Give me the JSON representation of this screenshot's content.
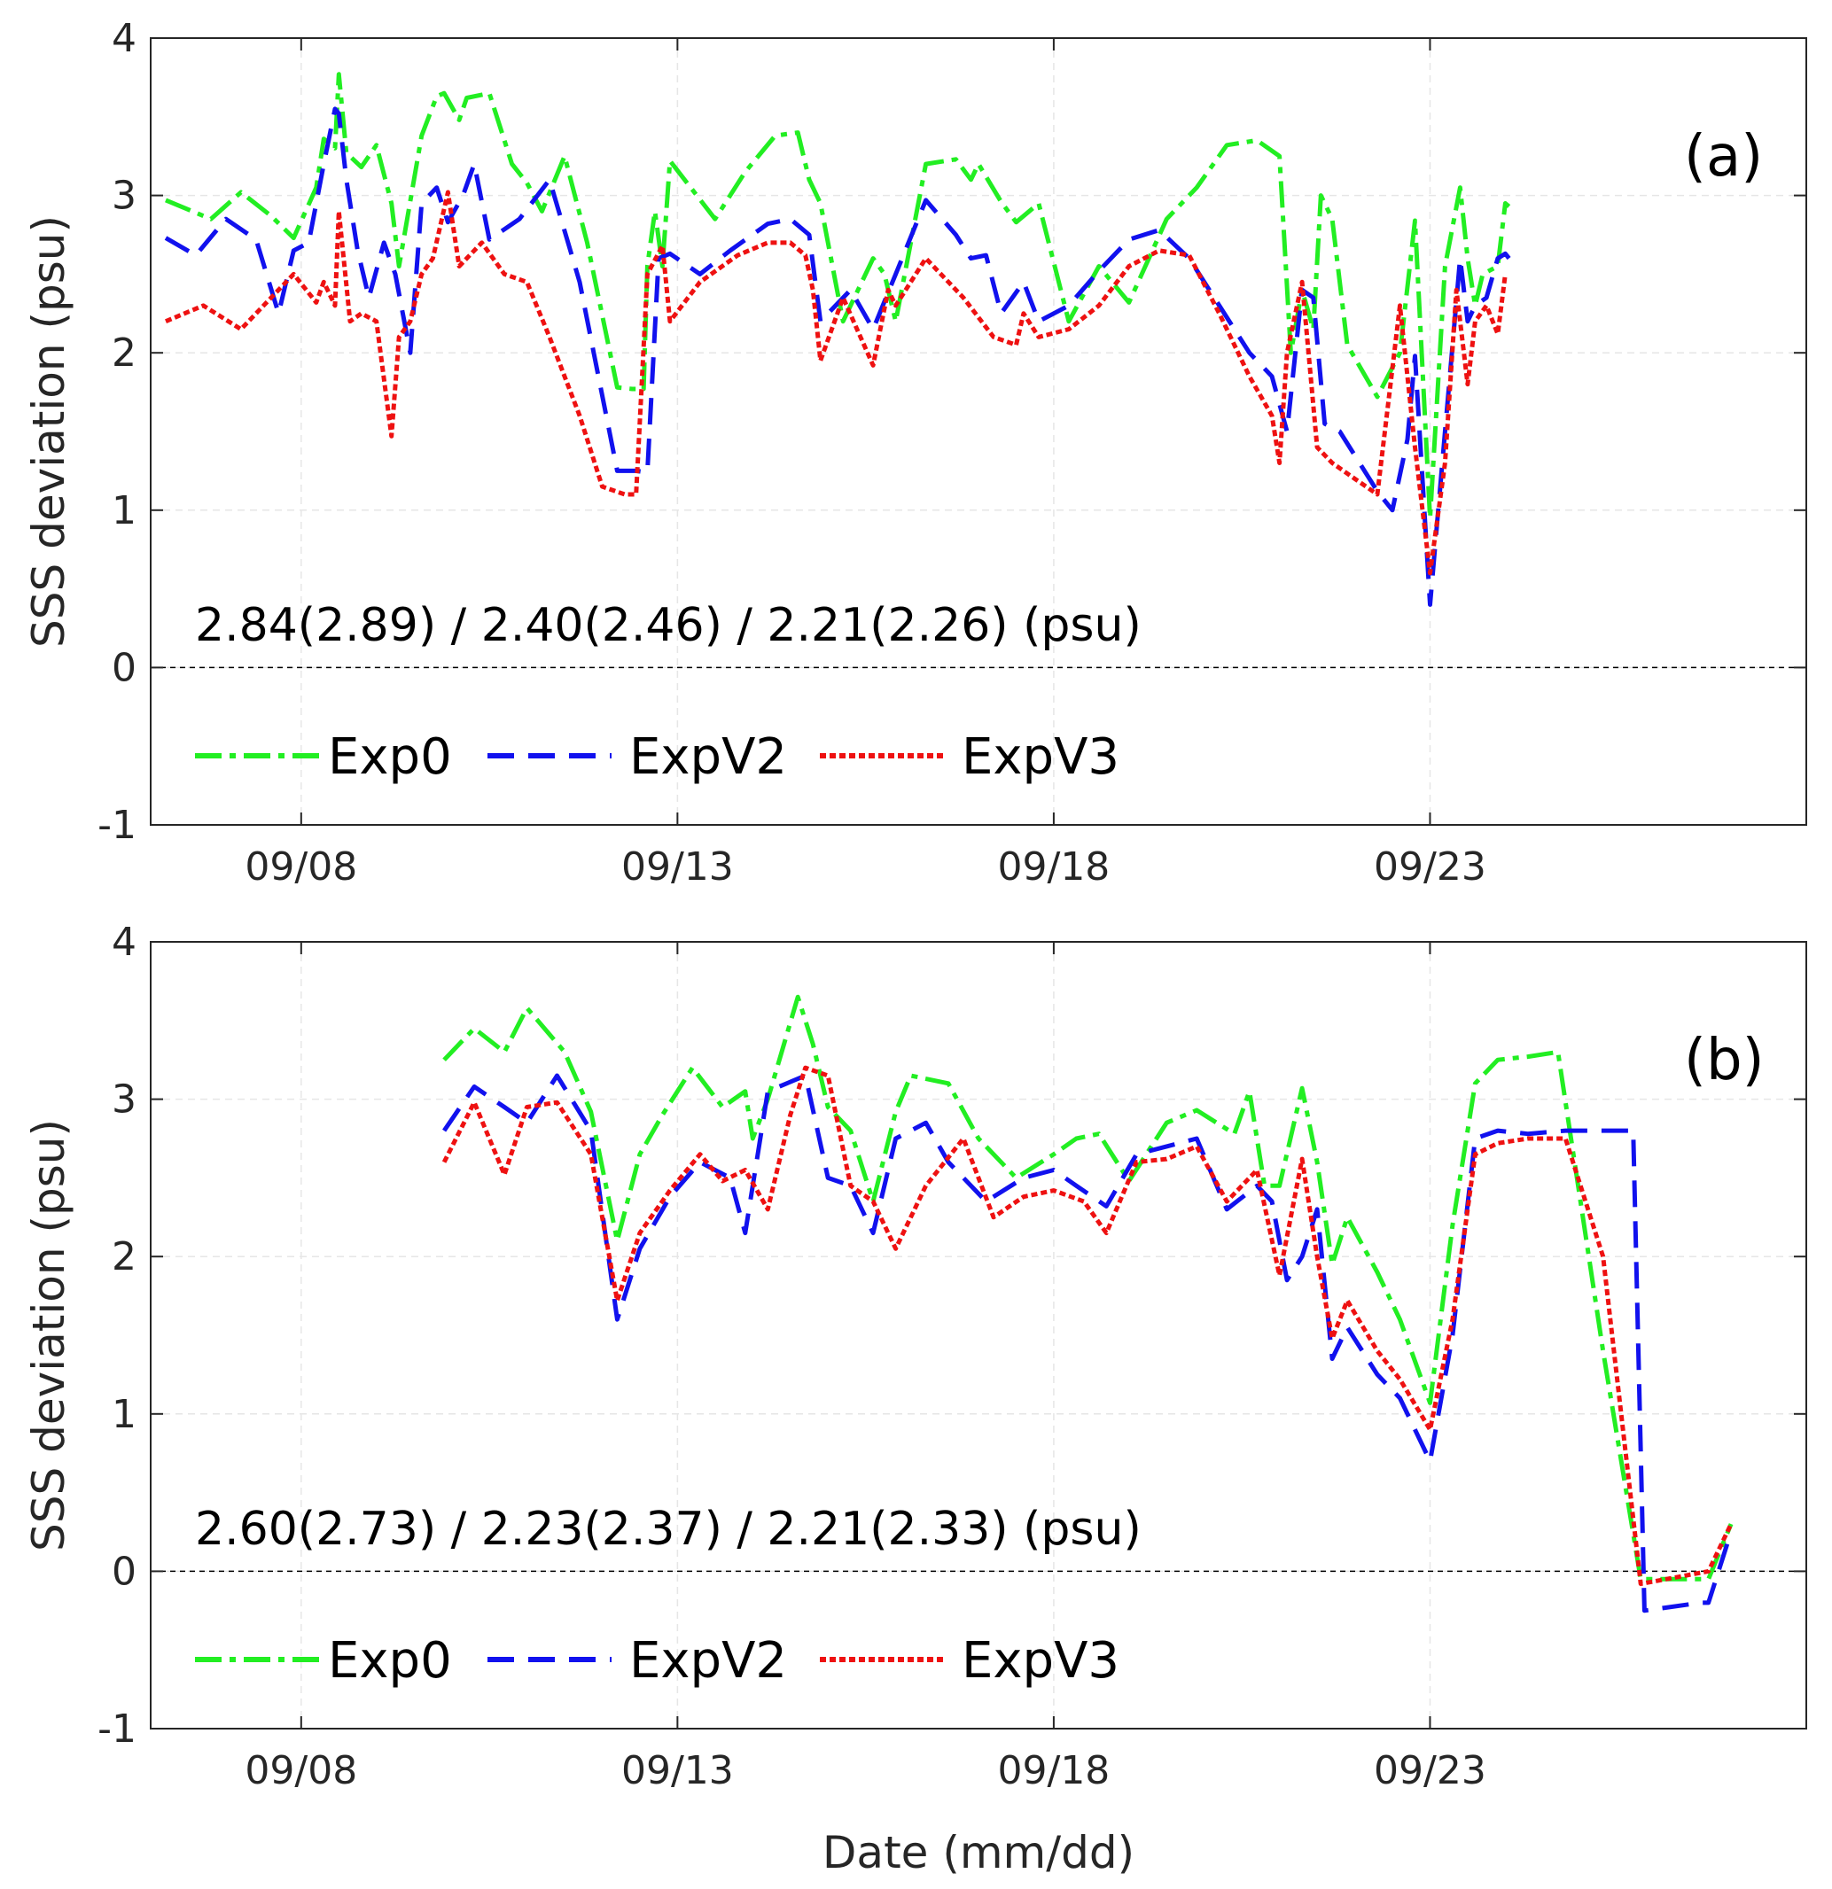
{
  "figure": {
    "xlabel": "Date (mm/dd)",
    "colors": {
      "Exp0": "#22ee22",
      "ExpV2": "#1111ee",
      "ExpV3": "#ee1111",
      "axis": "#262626",
      "grid": "#e6e6e6"
    }
  },
  "chart_data": [
    {
      "type": "line",
      "panel_label": "(a)",
      "stats_text": "2.84(2.89) / 2.40(2.46) / 2.21(2.26) (psu)",
      "ylabel": "SSS deviation (psu)",
      "ylim": [
        -1,
        4
      ],
      "yticks": [
        -1,
        0,
        1,
        2,
        3,
        4
      ],
      "xlim": [
        "09/06",
        "09/28"
      ],
      "xticks": [
        "09/08",
        "09/13",
        "09/18",
        "09/23"
      ],
      "grid": true,
      "legend": {
        "placement": "lower-left",
        "orientation": "horizontal"
      },
      "reference_line_y": 0,
      "series": [
        {
          "name": "Exp0",
          "style": "dash-dot",
          "x": [
            6.2,
            6.8,
            7.2,
            7.6,
            7.9,
            8.2,
            8.3,
            8.45,
            8.5,
            8.6,
            8.8,
            9.0,
            9.2,
            9.3,
            9.6,
            9.8,
            9.9,
            10.1,
            10.2,
            10.5,
            10.8,
            11.0,
            11.2,
            11.5,
            11.8,
            12.2,
            12.4,
            12.55,
            12.6,
            12.7,
            12.8,
            12.9,
            13.5,
            13.9,
            14.3,
            14.6,
            14.75,
            14.9,
            15.2,
            15.6,
            15.75,
            15.9,
            16.3,
            16.7,
            16.9,
            17.0,
            17.3,
            17.5,
            17.8,
            18.2,
            18.6,
            19.0,
            19.5,
            19.9,
            20.3,
            20.7,
            21.0,
            21.15,
            21.3,
            21.45,
            21.55,
            21.7,
            21.9,
            22.3,
            22.6,
            22.8,
            23.0,
            23.2,
            23.4,
            23.5,
            23.6,
            23.7,
            23.9,
            24.0,
            24.05
          ],
          "y": [
            2.97,
            2.85,
            3.02,
            2.87,
            2.73,
            3.05,
            3.36,
            3.3,
            3.77,
            3.27,
            3.18,
            3.32,
            2.95,
            2.55,
            3.38,
            3.63,
            3.65,
            3.48,
            3.62,
            3.65,
            3.2,
            3.08,
            2.9,
            3.25,
            2.7,
            1.78,
            1.77,
            1.77,
            2.55,
            2.9,
            2.55,
            3.22,
            2.85,
            3.15,
            3.38,
            3.4,
            3.1,
            2.95,
            2.2,
            2.6,
            2.5,
            2.2,
            3.2,
            3.23,
            3.1,
            3.2,
            2.96,
            2.83,
            2.95,
            2.2,
            2.55,
            2.32,
            2.85,
            3.05,
            3.32,
            3.35,
            3.25,
            2.0,
            2.4,
            2.15,
            3.0,
            2.85,
            2.05,
            1.72,
            2.0,
            2.84,
            0.95,
            2.55,
            3.05,
            2.6,
            2.3,
            2.5,
            2.55,
            2.95,
            2.93
          ]
        },
        {
          "name": "ExpV2",
          "style": "dashed",
          "x": [
            6.2,
            6.6,
            7.0,
            7.4,
            7.7,
            7.9,
            8.1,
            8.3,
            8.45,
            8.5,
            8.6,
            8.75,
            8.9,
            9.1,
            9.25,
            9.45,
            9.6,
            9.8,
            9.95,
            10.15,
            10.3,
            10.5,
            10.9,
            11.3,
            11.7,
            12.2,
            12.45,
            12.6,
            12.75,
            12.9,
            13.3,
            13.7,
            14.2,
            14.5,
            14.75,
            14.9,
            15.3,
            15.6,
            15.9,
            16.3,
            16.7,
            16.9,
            17.1,
            17.3,
            17.6,
            17.8,
            18.2,
            18.6,
            19.0,
            19.4,
            19.8,
            20.2,
            20.6,
            20.9,
            21.1,
            21.3,
            21.45,
            21.6,
            21.8,
            22.3,
            22.5,
            22.7,
            22.8,
            23.0,
            23.2,
            23.4,
            23.5,
            23.6,
            23.75,
            23.9,
            24.0,
            24.05
          ],
          "y": [
            2.73,
            2.62,
            2.85,
            2.72,
            2.25,
            2.65,
            2.7,
            3.2,
            3.55,
            3.52,
            3.1,
            2.65,
            2.35,
            2.7,
            2.5,
            2.0,
            2.95,
            3.05,
            2.83,
            3.0,
            3.2,
            2.72,
            2.85,
            3.1,
            2.45,
            1.25,
            1.25,
            1.24,
            2.6,
            2.63,
            2.5,
            2.65,
            2.82,
            2.85,
            2.75,
            2.2,
            2.4,
            2.15,
            2.5,
            2.97,
            2.75,
            2.6,
            2.62,
            2.25,
            2.45,
            2.2,
            2.3,
            2.52,
            2.72,
            2.78,
            2.6,
            2.3,
            2.0,
            1.85,
            1.5,
            2.4,
            2.35,
            1.55,
            1.5,
            1.12,
            1.0,
            1.45,
            1.98,
            0.4,
            1.5,
            2.6,
            2.2,
            2.3,
            2.35,
            2.6,
            2.63,
            2.6
          ]
        },
        {
          "name": "ExpV3",
          "style": "dotted",
          "x": [
            6.2,
            6.7,
            7.2,
            7.6,
            7.9,
            8.2,
            8.3,
            8.45,
            8.5,
            8.65,
            8.8,
            9.0,
            9.2,
            9.3,
            9.45,
            9.6,
            9.75,
            9.95,
            10.1,
            10.2,
            10.4,
            10.7,
            11.0,
            11.3,
            11.7,
            12.0,
            12.3,
            12.45,
            12.6,
            12.8,
            12.9,
            13.3,
            13.8,
            14.2,
            14.5,
            14.7,
            14.8,
            14.9,
            15.2,
            15.6,
            15.8,
            15.9,
            16.3,
            16.8,
            17.2,
            17.5,
            17.6,
            17.8,
            18.2,
            18.6,
            19.0,
            19.4,
            19.8,
            20.2,
            20.6,
            20.9,
            21.0,
            21.1,
            21.3,
            21.5,
            21.7,
            22.0,
            22.3,
            22.6,
            22.8,
            23.0,
            23.2,
            23.35,
            23.5,
            23.6,
            23.75,
            23.9,
            24.0
          ],
          "y": [
            2.2,
            2.3,
            2.15,
            2.35,
            2.5,
            2.32,
            2.45,
            2.3,
            2.9,
            2.2,
            2.25,
            2.2,
            1.47,
            2.1,
            2.2,
            2.5,
            2.6,
            3.02,
            2.55,
            2.6,
            2.7,
            2.5,
            2.45,
            2.1,
            1.6,
            1.15,
            1.1,
            1.1,
            2.5,
            2.68,
            2.2,
            2.45,
            2.62,
            2.7,
            2.7,
            2.62,
            2.4,
            1.95,
            2.35,
            1.92,
            2.4,
            2.3,
            2.6,
            2.35,
            2.1,
            2.05,
            2.25,
            2.1,
            2.15,
            2.3,
            2.55,
            2.65,
            2.62,
            2.25,
            1.85,
            1.6,
            1.3,
            2.0,
            2.45,
            1.4,
            1.3,
            1.2,
            1.1,
            2.3,
            1.4,
            0.6,
            1.3,
            2.4,
            1.8,
            2.2,
            2.3,
            2.12,
            2.5
          ]
        }
      ]
    },
    {
      "type": "line",
      "panel_label": "(b)",
      "stats_text": "2.60(2.73) / 2.23(2.37) / 2.21(2.33) (psu)",
      "ylabel": "SSS deviation (psu)",
      "ylim": [
        -1,
        4
      ],
      "yticks": [
        -1,
        0,
        1,
        2,
        3,
        4
      ],
      "xlim": [
        "09/06",
        "09/28"
      ],
      "xticks": [
        "09/08",
        "09/13",
        "09/18",
        "09/23"
      ],
      "grid": true,
      "legend": {
        "placement": "lower-left",
        "orientation": "horizontal"
      },
      "reference_line_y": 0,
      "series": [
        {
          "name": "Exp0",
          "style": "dash-dot",
          "x": [
            9.9,
            10.3,
            10.7,
            11.0,
            11.5,
            11.85,
            12.2,
            12.5,
            12.8,
            13.2,
            13.6,
            13.9,
            14.0,
            14.2,
            14.6,
            14.8,
            15.0,
            15.3,
            15.6,
            15.9,
            16.1,
            16.6,
            17.0,
            17.5,
            18.0,
            18.3,
            18.6,
            19.0,
            19.5,
            19.9,
            20.4,
            20.6,
            20.8,
            21.0,
            21.3,
            21.5,
            21.7,
            21.9,
            22.3,
            22.6,
            23.0,
            23.3,
            23.6,
            23.9,
            24.3,
            24.7,
            25.3,
            25.8,
            26.7,
            27.0
          ],
          "y": [
            3.25,
            3.45,
            3.3,
            3.58,
            3.3,
            2.92,
            2.1,
            2.65,
            2.9,
            3.2,
            2.95,
            3.05,
            2.75,
            3.0,
            3.65,
            3.35,
            2.95,
            2.8,
            2.35,
            2.92,
            3.15,
            3.1,
            2.75,
            2.5,
            2.65,
            2.75,
            2.78,
            2.48,
            2.85,
            2.93,
            2.78,
            3.05,
            2.45,
            2.45,
            3.07,
            2.6,
            1.95,
            2.25,
            1.9,
            1.6,
            1.07,
            2.2,
            3.1,
            3.25,
            3.27,
            3.3,
            1.4,
            -0.05,
            -0.05,
            0.3
          ]
        },
        {
          "name": "ExpV2",
          "style": "dashed",
          "x": [
            9.9,
            10.3,
            10.7,
            11.0,
            11.4,
            11.85,
            12.2,
            12.5,
            12.9,
            13.3,
            13.7,
            13.9,
            14.2,
            14.7,
            15.0,
            15.3,
            15.6,
            15.9,
            16.3,
            16.6,
            17.1,
            17.6,
            18.0,
            18.3,
            18.7,
            19.1,
            19.5,
            19.9,
            20.3,
            20.7,
            20.9,
            21.1,
            21.3,
            21.5,
            21.7,
            21.9,
            22.3,
            22.6,
            23.0,
            23.3,
            23.6,
            23.9,
            24.3,
            24.8,
            25.2,
            25.7,
            25.85,
            26.6,
            26.7,
            27.0
          ],
          "y": [
            2.8,
            3.08,
            2.95,
            2.85,
            3.15,
            2.8,
            1.6,
            2.05,
            2.38,
            2.6,
            2.5,
            2.15,
            3.05,
            3.15,
            2.5,
            2.45,
            2.15,
            2.75,
            2.85,
            2.6,
            2.35,
            2.5,
            2.55,
            2.45,
            2.32,
            2.65,
            2.7,
            2.75,
            2.3,
            2.45,
            2.35,
            1.85,
            2.0,
            2.3,
            1.35,
            1.55,
            1.25,
            1.1,
            0.7,
            1.5,
            2.75,
            2.8,
            2.78,
            2.8,
            2.8,
            2.8,
            -0.25,
            -0.2,
            -0.2,
            0.25
          ]
        },
        {
          "name": "ExpV3",
          "style": "dotted",
          "x": [
            9.9,
            10.3,
            10.7,
            11.0,
            11.4,
            11.85,
            12.2,
            12.5,
            12.9,
            13.3,
            13.6,
            13.9,
            14.2,
            14.5,
            14.7,
            15.0,
            15.3,
            15.6,
            15.9,
            16.3,
            16.8,
            17.2,
            17.6,
            18.0,
            18.4,
            18.7,
            19.1,
            19.5,
            19.9,
            20.3,
            20.7,
            21.0,
            21.3,
            21.5,
            21.7,
            21.9,
            22.3,
            22.6,
            23.0,
            23.3,
            23.6,
            23.9,
            24.3,
            24.8,
            25.3,
            25.8,
            26.7,
            27.0
          ],
          "y": [
            2.6,
            2.98,
            2.52,
            2.95,
            2.98,
            2.65,
            1.72,
            2.15,
            2.42,
            2.65,
            2.48,
            2.55,
            2.3,
            2.9,
            3.2,
            3.15,
            2.45,
            2.35,
            2.05,
            2.45,
            2.75,
            2.25,
            2.38,
            2.42,
            2.35,
            2.15,
            2.6,
            2.62,
            2.7,
            2.35,
            2.55,
            1.88,
            2.62,
            2.0,
            1.48,
            1.72,
            1.4,
            1.22,
            0.9,
            1.6,
            2.65,
            2.72,
            2.75,
            2.75,
            2.0,
            -0.08,
            0.0,
            0.3
          ]
        }
      ]
    }
  ]
}
